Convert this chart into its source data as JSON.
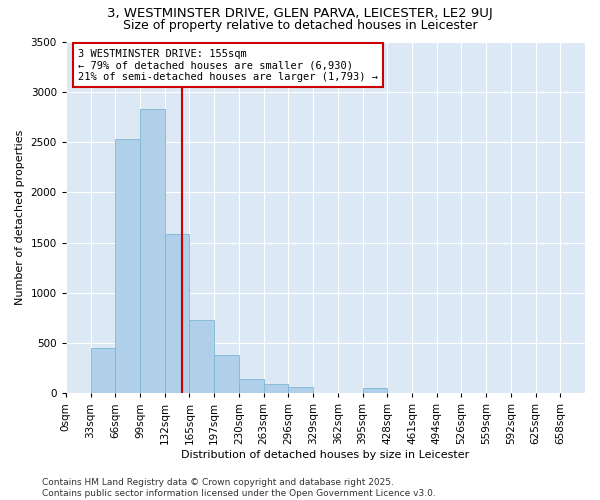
{
  "title": "3, WESTMINSTER DRIVE, GLEN PARVA, LEICESTER, LE2 9UJ",
  "subtitle": "Size of property relative to detached houses in Leicester",
  "xlabel": "Distribution of detached houses by size in Leicester",
  "ylabel": "Number of detached properties",
  "bin_labels": [
    "0sqm",
    "33sqm",
    "66sqm",
    "99sqm",
    "132sqm",
    "165sqm",
    "197sqm",
    "230sqm",
    "263sqm",
    "296sqm",
    "329sqm",
    "362sqm",
    "395sqm",
    "428sqm",
    "461sqm",
    "494sqm",
    "526sqm",
    "559sqm",
    "592sqm",
    "625sqm",
    "658sqm"
  ],
  "bar_heights": [
    0,
    450,
    2530,
    2830,
    1580,
    730,
    380,
    140,
    90,
    60,
    0,
    0,
    50,
    0,
    0,
    0,
    0,
    0,
    0,
    0,
    0
  ],
  "bar_color": "#afd0e8",
  "bar_edgecolor": "#7fb5d5",
  "property_bin_index": 4,
  "annotation_text": "3 WESTMINSTER DRIVE: 155sqm\n← 79% of detached houses are smaller (6,930)\n21% of semi-detached houses are larger (1,793) →",
  "vline_color": "#cc0000",
  "annotation_box_edgecolor": "#cc0000",
  "ylim": [
    0,
    3500
  ],
  "yticks": [
    0,
    500,
    1000,
    1500,
    2000,
    2500,
    3000,
    3500
  ],
  "background_color": "#dce9f5",
  "footer_text": "Contains HM Land Registry data © Crown copyright and database right 2025.\nContains public sector information licensed under the Open Government Licence v3.0.",
  "title_fontsize": 9.5,
  "subtitle_fontsize": 9,
  "axis_label_fontsize": 8,
  "tick_fontsize": 7.5,
  "annotation_fontsize": 7.5,
  "footer_fontsize": 6.5
}
